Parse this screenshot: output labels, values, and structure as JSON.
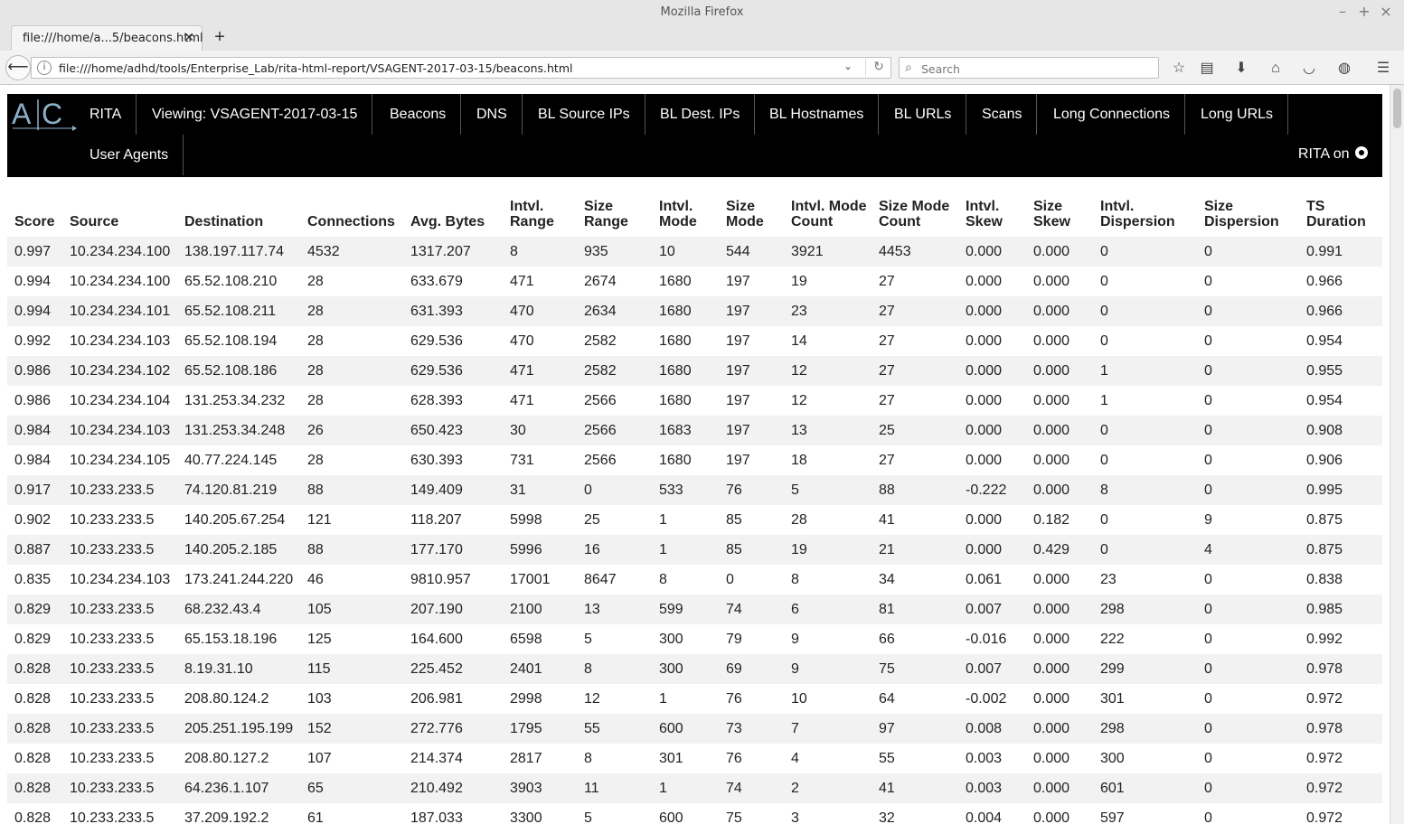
{
  "window": {
    "title": "Mozilla Firefox"
  },
  "tabs": [
    {
      "label": "file:///home/a...5/beacons.html"
    }
  ],
  "urlbar": {
    "url": "file:///home/adhd/tools/Enterprise_Lab/rita-html-report/VSAGENT-2017-03-15/beacons.html"
  },
  "search": {
    "placeholder": "Search"
  },
  "nav": {
    "items": [
      "RITA",
      "Viewing: VSAGENT-2017-03-15",
      "Beacons",
      "DNS",
      "BL Source IPs",
      "BL Dest. IPs",
      "BL Hostnames",
      "BL URLs",
      "Scans",
      "Long Connections",
      "Long URLs",
      "User Agents"
    ],
    "github_label": "RITA on"
  },
  "table": {
    "headers": [
      "Score",
      "Source",
      "Destination",
      "Connections",
      "Avg. Bytes",
      "Intvl. Range",
      "Size Range",
      "Intvl. Mode",
      "Size Mode",
      "Intvl. Mode Count",
      "Size Mode Count",
      "Intvl. Skew",
      "Size Skew",
      "Intvl. Dispersion",
      "Size Dispersion",
      "TS Duration"
    ],
    "rows": [
      [
        "0.997",
        "10.234.234.100",
        "138.197.117.74",
        "4532",
        "1317.207",
        "8",
        "935",
        "10",
        "544",
        "3921",
        "4453",
        "0.000",
        "0.000",
        "0",
        "0",
        "0.991"
      ],
      [
        "0.994",
        "10.234.234.100",
        "65.52.108.210",
        "28",
        "633.679",
        "471",
        "2674",
        "1680",
        "197",
        "19",
        "27",
        "0.000",
        "0.000",
        "0",
        "0",
        "0.966"
      ],
      [
        "0.994",
        "10.234.234.101",
        "65.52.108.211",
        "28",
        "631.393",
        "470",
        "2634",
        "1680",
        "197",
        "23",
        "27",
        "0.000",
        "0.000",
        "0",
        "0",
        "0.966"
      ],
      [
        "0.992",
        "10.234.234.103",
        "65.52.108.194",
        "28",
        "629.536",
        "470",
        "2582",
        "1680",
        "197",
        "14",
        "27",
        "0.000",
        "0.000",
        "0",
        "0",
        "0.954"
      ],
      [
        "0.986",
        "10.234.234.102",
        "65.52.108.186",
        "28",
        "629.536",
        "471",
        "2582",
        "1680",
        "197",
        "12",
        "27",
        "0.000",
        "0.000",
        "1",
        "0",
        "0.955"
      ],
      [
        "0.986",
        "10.234.234.104",
        "131.253.34.232",
        "28",
        "628.393",
        "471",
        "2566",
        "1680",
        "197",
        "12",
        "27",
        "0.000",
        "0.000",
        "1",
        "0",
        "0.954"
      ],
      [
        "0.984",
        "10.234.234.103",
        "131.253.34.248",
        "26",
        "650.423",
        "30",
        "2566",
        "1683",
        "197",
        "13",
        "25",
        "0.000",
        "0.000",
        "0",
        "0",
        "0.908"
      ],
      [
        "0.984",
        "10.234.234.105",
        "40.77.224.145",
        "28",
        "630.393",
        "731",
        "2566",
        "1680",
        "197",
        "18",
        "27",
        "0.000",
        "0.000",
        "0",
        "0",
        "0.906"
      ],
      [
        "0.917",
        "10.233.233.5",
        "74.120.81.219",
        "88",
        "149.409",
        "31",
        "0",
        "533",
        "76",
        "5",
        "88",
        "-0.222",
        "0.000",
        "8",
        "0",
        "0.995"
      ],
      [
        "0.902",
        "10.233.233.5",
        "140.205.67.254",
        "121",
        "118.207",
        "5998",
        "25",
        "1",
        "85",
        "28",
        "41",
        "0.000",
        "0.182",
        "0",
        "9",
        "0.875"
      ],
      [
        "0.887",
        "10.233.233.5",
        "140.205.2.185",
        "88",
        "177.170",
        "5996",
        "16",
        "1",
        "85",
        "19",
        "21",
        "0.000",
        "0.429",
        "0",
        "4",
        "0.875"
      ],
      [
        "0.835",
        "10.234.234.103",
        "173.241.244.220",
        "46",
        "9810.957",
        "17001",
        "8647",
        "8",
        "0",
        "8",
        "34",
        "0.061",
        "0.000",
        "23",
        "0",
        "0.838"
      ],
      [
        "0.829",
        "10.233.233.5",
        "68.232.43.4",
        "105",
        "207.190",
        "2100",
        "13",
        "599",
        "74",
        "6",
        "81",
        "0.007",
        "0.000",
        "298",
        "0",
        "0.985"
      ],
      [
        "0.829",
        "10.233.233.5",
        "65.153.18.196",
        "125",
        "164.600",
        "6598",
        "5",
        "300",
        "79",
        "9",
        "66",
        "-0.016",
        "0.000",
        "222",
        "0",
        "0.992"
      ],
      [
        "0.828",
        "10.233.233.5",
        "8.19.31.10",
        "115",
        "225.452",
        "2401",
        "8",
        "300",
        "69",
        "9",
        "75",
        "0.007",
        "0.000",
        "299",
        "0",
        "0.978"
      ],
      [
        "0.828",
        "10.233.233.5",
        "208.80.124.2",
        "103",
        "206.981",
        "2998",
        "12",
        "1",
        "76",
        "10",
        "64",
        "-0.002",
        "0.000",
        "301",
        "0",
        "0.972"
      ],
      [
        "0.828",
        "10.233.233.5",
        "205.251.195.199",
        "152",
        "272.776",
        "1795",
        "55",
        "600",
        "73",
        "7",
        "97",
        "0.008",
        "0.000",
        "298",
        "0",
        "0.978"
      ],
      [
        "0.828",
        "10.233.233.5",
        "208.80.127.2",
        "107",
        "214.374",
        "2817",
        "8",
        "301",
        "76",
        "4",
        "55",
        "0.003",
        "0.000",
        "300",
        "0",
        "0.972"
      ],
      [
        "0.828",
        "10.233.233.5",
        "64.236.1.107",
        "65",
        "210.492",
        "3903",
        "11",
        "1",
        "74",
        "2",
        "41",
        "0.003",
        "0.000",
        "601",
        "0",
        "0.972"
      ],
      [
        "0.828",
        "10.233.233.5",
        "37.209.192.2",
        "61",
        "187.033",
        "3300",
        "5",
        "600",
        "75",
        "3",
        "32",
        "0.004",
        "0.000",
        "597",
        "0",
        "0.972"
      ]
    ]
  }
}
